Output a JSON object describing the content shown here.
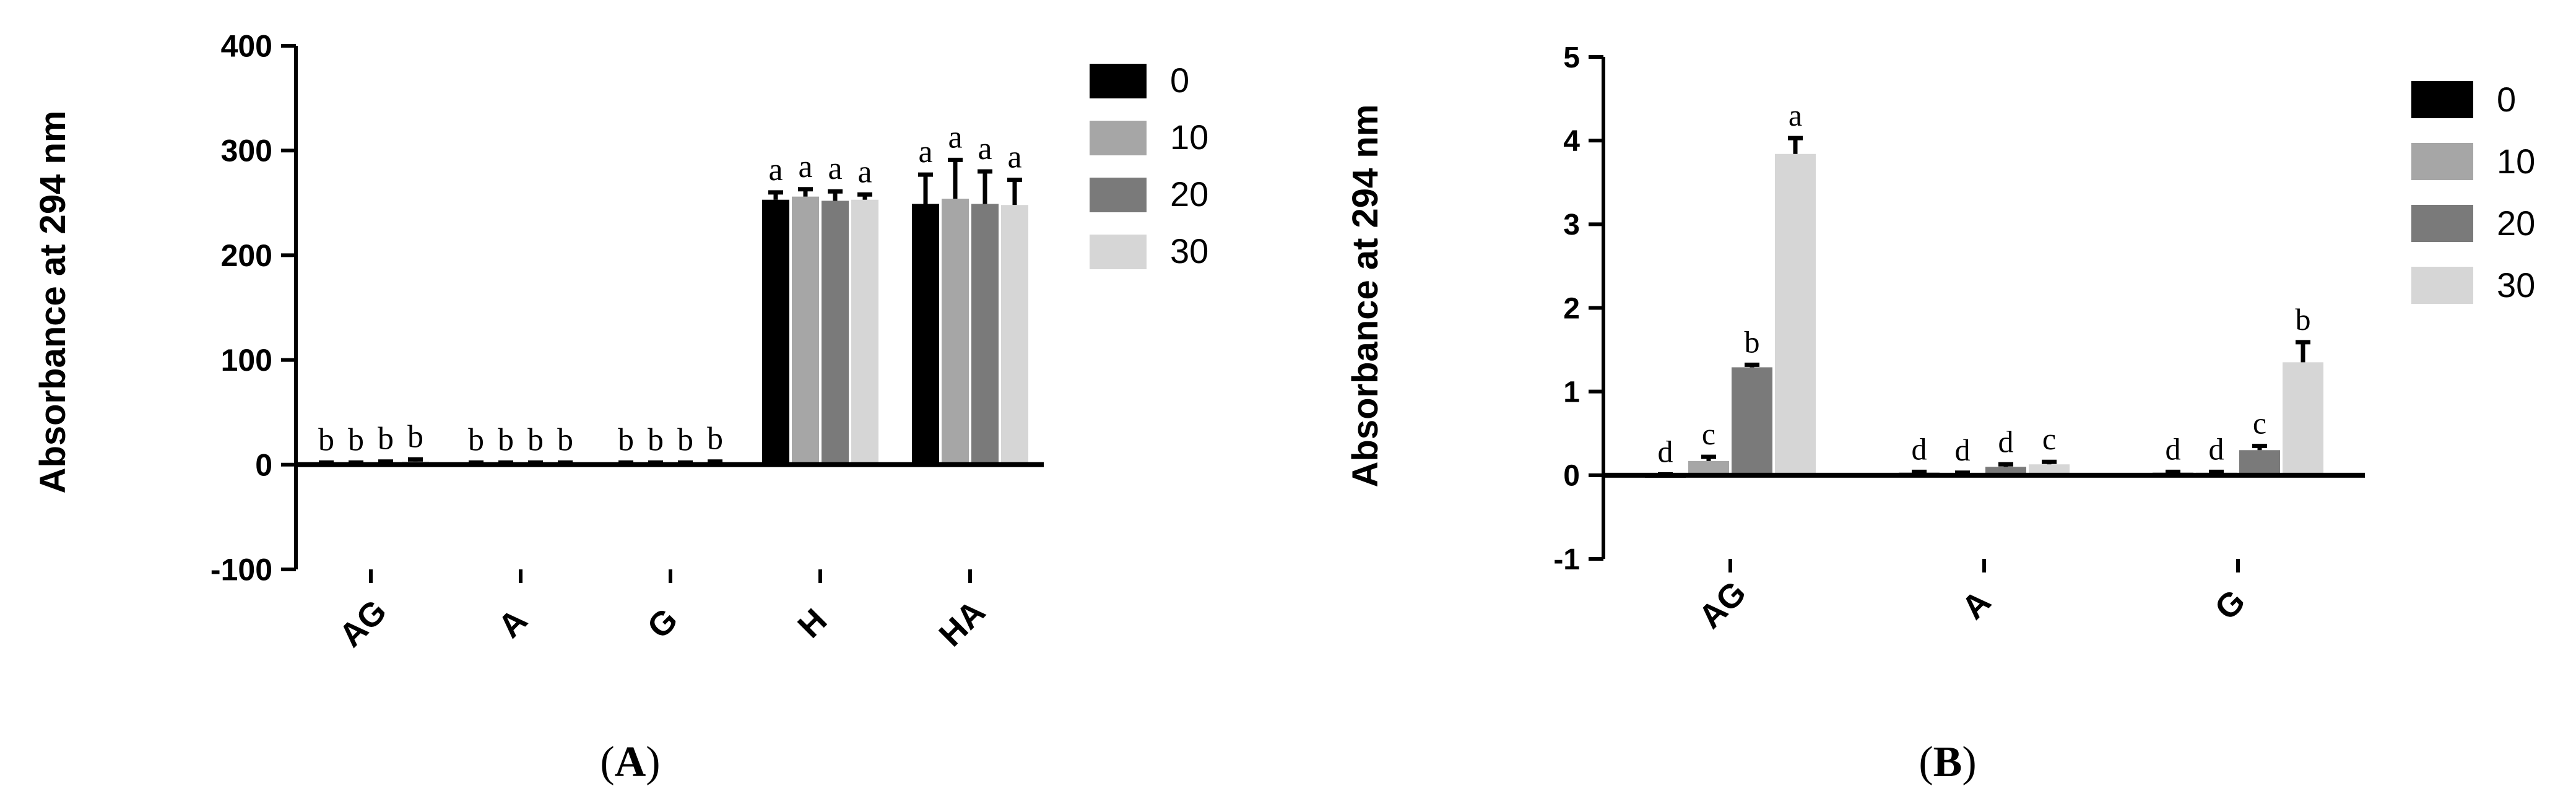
{
  "panels": [
    {
      "panel_label": "A",
      "chart_data": {
        "type": "bar",
        "title": "",
        "xlabel": "",
        "ylabel": "Absorbance at 294 nm",
        "ylim": [
          -100,
          400
        ],
        "yticks": [
          -100,
          0,
          100,
          200,
          300,
          400
        ],
        "grid": false,
        "legend_position": "right",
        "categories": [
          "AG",
          "A",
          "G",
          "H",
          "HA"
        ],
        "series": [
          {
            "name": "0",
            "color": "#000000",
            "values": [
              1,
              1,
              1,
              253,
              249
            ],
            "errors": [
              1,
              1,
              1,
              7,
              28
            ],
            "letters": [
              "b",
              "b",
              "b",
              "a",
              "a"
            ]
          },
          {
            "name": "10",
            "color": "#a6a6a6",
            "values": [
              1,
              1,
              1,
              256,
              254
            ],
            "errors": [
              1,
              1,
              1,
              7,
              37
            ],
            "letters": [
              "b",
              "b",
              "b",
              "a",
              "a"
            ]
          },
          {
            "name": "20",
            "color": "#7a7a7a",
            "values": [
              2,
              1,
              1,
              252,
              249
            ],
            "errors": [
              1,
              1,
              1,
              9,
              31
            ],
            "letters": [
              "b",
              "b",
              "b",
              "a",
              "a"
            ]
          },
          {
            "name": "30",
            "color": "#d6d6d6",
            "values": [
              3,
              1,
              2,
              253,
              248
            ],
            "errors": [
              2,
              1,
              1,
              5,
              24
            ],
            "letters": [
              "b",
              "b",
              "b",
              "a",
              "a"
            ]
          }
        ]
      }
    },
    {
      "panel_label": "B",
      "chart_data": {
        "type": "bar",
        "title": "",
        "xlabel": "",
        "ylabel": "Absorbance at 294 nm",
        "ylim": [
          -1,
          5
        ],
        "yticks": [
          -1,
          0,
          1,
          2,
          3,
          4,
          5
        ],
        "grid": false,
        "legend_position": "right",
        "categories": [
          "AG",
          "A",
          "G"
        ],
        "series": [
          {
            "name": "0",
            "color": "#000000",
            "values": [
              -0.03,
              0.03,
              0.03
            ],
            "errors": [
              0.01,
              0.01,
              0.01
            ],
            "letters": [
              "d",
              "d",
              "d"
            ]
          },
          {
            "name": "10",
            "color": "#a6a6a6",
            "values": [
              0.17,
              0.02,
              0.03
            ],
            "errors": [
              0.05,
              0.01,
              0.01
            ],
            "letters": [
              "c",
              "d",
              "d"
            ]
          },
          {
            "name": "20",
            "color": "#7a7a7a",
            "values": [
              1.29,
              0.1,
              0.3
            ],
            "errors": [
              0.03,
              0.03,
              0.05
            ],
            "letters": [
              "b",
              "d",
              "c"
            ]
          },
          {
            "name": "30",
            "color": "#d6d6d6",
            "values": [
              3.84,
              0.13,
              1.35
            ],
            "errors": [
              0.19,
              0.03,
              0.24
            ],
            "letters": [
              "a",
              "c",
              "b"
            ]
          }
        ]
      }
    }
  ]
}
